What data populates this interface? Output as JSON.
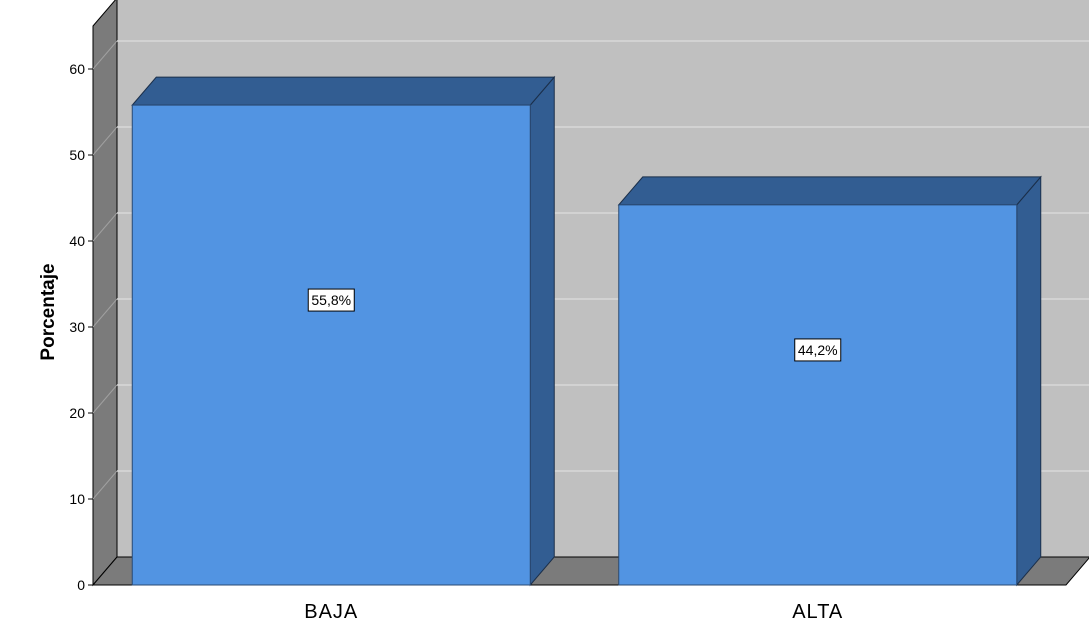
{
  "chart_data": {
    "type": "bar",
    "categories": [
      "BAJA",
      "ALTA"
    ],
    "values": [
      55.8,
      44.2
    ],
    "data_labels": [
      "55,8%",
      "44,2%"
    ],
    "title": "",
    "xlabel": "",
    "ylabel": "Porcentaje",
    "ylim": [
      0,
      60
    ],
    "yticks": [
      "0",
      "10",
      "20",
      "30",
      "40",
      "50",
      "60"
    ],
    "grid": true,
    "three_d": true,
    "colors": {
      "bar_front": "#5294e2",
      "bar_top": "#325d92",
      "bar_side": "#325d92",
      "back_wall": "#c0c0c0",
      "side_wall": "#7b7b7b",
      "floor": "#7b7b7b",
      "grid": "#d8d8d8"
    }
  }
}
